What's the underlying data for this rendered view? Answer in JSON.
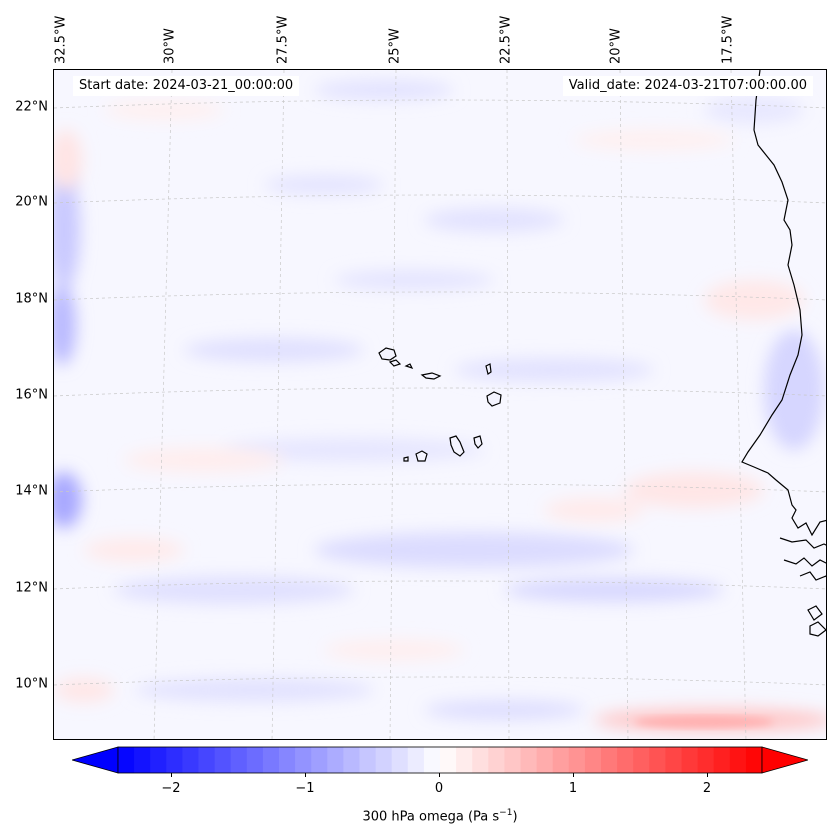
{
  "map": {
    "start_date": "Start date: 2024-03-21_00:00:00",
    "valid_date": "Valid_date: 2024-03-21T07:00:00.00",
    "longitude_labels": [
      "32.5°W",
      "30°W",
      "27.5°W",
      "25°W",
      "22.5°W",
      "20°W",
      "17.5°W"
    ],
    "latitude_labels": [
      "22°N",
      "20°N",
      "18°N",
      "16°N",
      "14°N",
      "12°N",
      "10°N"
    ],
    "field": "300 hPa omega",
    "units": "Pa s⁻¹",
    "coastline_color": "#000000",
    "gridline_color": "#bdbdbd"
  },
  "colorbar": {
    "label_text": "300 hPa omega (Pa s",
    "label_sup": "−1",
    "label_close": ")",
    "ticks": [
      "−2",
      "−1",
      "0",
      "1",
      "2"
    ],
    "tick_values": [
      -2,
      -1,
      0,
      1,
      2
    ],
    "range": [
      -2.6,
      2.6
    ],
    "min_color": "#0000ff",
    "mid_color": "#ffffff",
    "max_color": "#ff0000",
    "extend": "both"
  },
  "icons": {
    "colorbar_left_arrow": "triangle-left-icon",
    "colorbar_right_arrow": "triangle-right-icon"
  }
}
